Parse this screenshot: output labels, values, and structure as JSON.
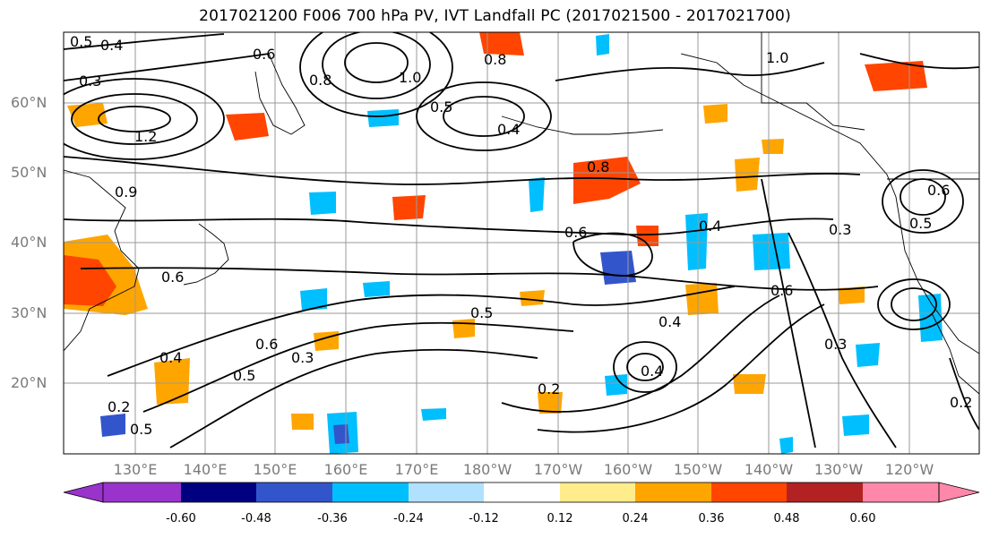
{
  "title": "2017021200 F006 700 hPa PV, IVT Landfall PC (2017021500 - 2017021700)",
  "lat_labels": [
    "60°N",
    "50°N",
    "40°N",
    "30°N",
    "20°N"
  ],
  "lon_labels": [
    "130°E",
    "140°E",
    "150°E",
    "160°E",
    "170°E",
    "180°W",
    "170°W",
    "160°W",
    "150°W",
    "140°W",
    "130°W",
    "120°W"
  ],
  "colorbar": {
    "colors": [
      "#9933cc",
      "#000080",
      "#3355cc",
      "#00bfff",
      "#b0e2ff",
      "#ffffff",
      "#ffec8b",
      "#ffa500",
      "#ff4500",
      "#b22222",
      "#ff88aa"
    ],
    "tick_labels": [
      "-0.60",
      "-0.48",
      "-0.36",
      "-0.24",
      "-0.12",
      "0.12",
      "0.24",
      "0.36",
      "0.48",
      "0.60"
    ]
  },
  "contour_labels": [
    "0.5",
    "0.4",
    "0.3",
    "0.6",
    "0.8",
    "1.2",
    "1.0",
    "0.4",
    "0.6",
    "0.8",
    "0.5",
    "0.4",
    "0.3",
    "0.6",
    "0.5",
    "0.4",
    "0.3",
    "0.2",
    "0.2",
    "0.5",
    "0.6",
    "0.4",
    "0.3",
    "0.2",
    "0.5",
    "0.6",
    "0.4",
    "1.0",
    "0.9",
    "0.6",
    "0.5",
    "0.8"
  ]
}
